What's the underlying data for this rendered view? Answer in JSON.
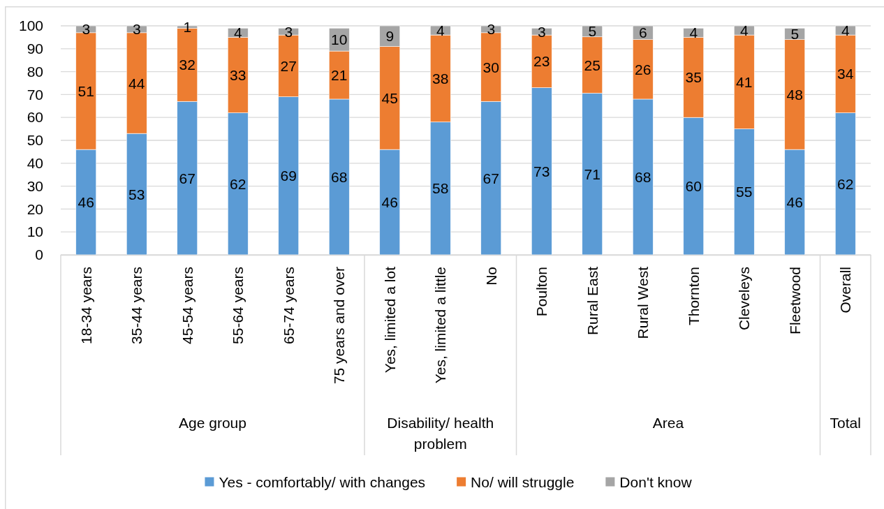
{
  "chart_data": {
    "type": "bar",
    "stacked": true,
    "categories": [
      "18-34 years",
      "35-44 years",
      "45-54 years",
      "55-64 years",
      "65-74 years",
      "75 years and over",
      "Yes, limited a lot",
      "Yes, limited a little",
      "No",
      "Poulton",
      "Rural East",
      "Rural West",
      "Thornton",
      "Cleveleys",
      "Fleetwood",
      "Overall"
    ],
    "series": [
      {
        "name": "Yes - comfortably/ with changes",
        "color": "#5b9bd5",
        "values": [
          46,
          53,
          67,
          62,
          69,
          68,
          46,
          58,
          67,
          73,
          70.6,
          68,
          60,
          55,
          46,
          62
        ],
        "value_labels": [
          "46",
          "53",
          "67",
          "62",
          "69",
          "68",
          "46",
          "58",
          "67",
          "73",
          "71",
          "68",
          "60",
          "55",
          "46",
          "62"
        ]
      },
      {
        "name": "No/ will struggle",
        "color": "#ed7d31",
        "values": [
          51,
          44,
          32,
          33,
          27,
          21,
          45,
          38,
          30,
          23,
          24.6,
          26,
          35,
          41,
          48,
          34
        ],
        "value_labels": [
          "51",
          "44",
          "32",
          "33",
          "27",
          "21",
          "45",
          "38",
          "30",
          "23",
          "25",
          "26",
          "35",
          "41",
          "48",
          "34"
        ]
      },
      {
        "name": "Don't know",
        "color": "#a5a5a5",
        "values": [
          3,
          3,
          1,
          4,
          3,
          10,
          9,
          4,
          3,
          3,
          4.8,
          6,
          4,
          4,
          5,
          4
        ],
        "value_labels": [
          "3",
          "3",
          "1",
          "4",
          "3",
          "10",
          "9",
          "4",
          "3",
          "3",
          "5",
          "6",
          "4",
          "4",
          "5",
          "4"
        ]
      }
    ],
    "ylim": [
      0,
      100
    ],
    "yticks": [
      0,
      10,
      20,
      30,
      40,
      50,
      60,
      70,
      80,
      90,
      100
    ],
    "grid": "y",
    "legend": "bottom",
    "annotations": [
      "Age group",
      "Disability/ health problem",
      "Area",
      "Total"
    ]
  }
}
